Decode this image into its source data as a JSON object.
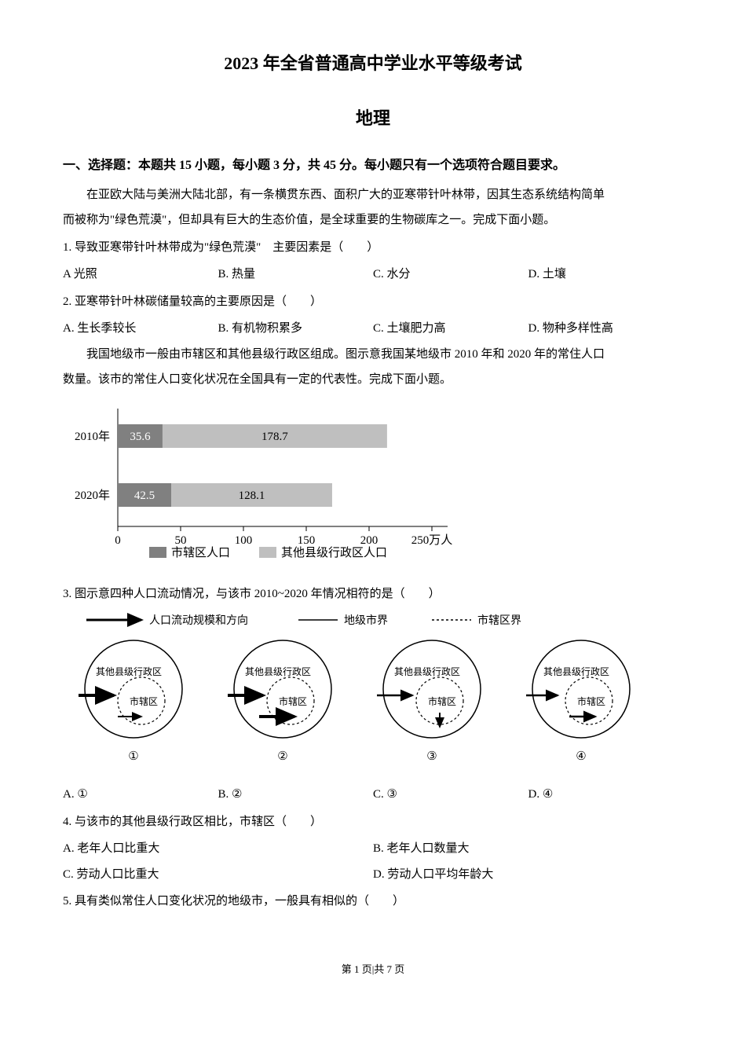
{
  "title_main": "2023 年全省普通高中学业水平等级考试",
  "title_sub": "地理",
  "section1": "一、选择题：本题共 15 小题，每小题 3 分，共 45 分。每小题只有一个选项符合题目要求。",
  "passage1a": "在亚欧大陆与美洲大陆北部，有一条横贯东西、面积广大的亚寒带针叶林带，因其生态系统结构简单",
  "passage1b": "而被称为\"绿色荒漠\"，但却具有巨大的生态价值，是全球重要的生物碳库之一。完成下面小题。",
  "q1": {
    "stem": "1. 导致亚寒带针叶林带成为\"绿色荒漠\"　主要因素是（　　）",
    "A": "A  光照",
    "B": "B. 热量",
    "C": "C. 水分",
    "D": "D. 土壤"
  },
  "q2": {
    "stem": "2. 亚寒带针叶林碳储量较高的主要原因是（　　）",
    "A": "A. 生长季较长",
    "B": "B. 有机物积累多",
    "C": "C. 土壤肥力高",
    "D": "D. 物种多样性高"
  },
  "passage2a": "我国地级市一般由市辖区和其他县级行政区组成。图示意我国某地级市 2010 年和 2020 年的常住人口",
  "passage2b": "数量。该市的常住人口变化状况在全国具有一定的代表性。完成下面小题。",
  "chart": {
    "type": "bar",
    "y_labels": [
      "2010年",
      "2020年"
    ],
    "series": [
      {
        "name": "市辖区人口",
        "values": [
          35.6,
          42.5
        ],
        "color": "#808080"
      },
      {
        "name": "其他县级行政区人口",
        "values": [
          178.7,
          128.1
        ],
        "color": "#bfbfbf"
      }
    ],
    "x_ticks": [
      0,
      50,
      100,
      150,
      200,
      250
    ],
    "x_unit": "万人",
    "axis_color": "#000000",
    "bg": "#ffffff",
    "font_size": 15,
    "legend": [
      "市辖区人口",
      "其他县级行政区人口"
    ],
    "legend_swatch": [
      "#808080",
      "#bfbfbf"
    ]
  },
  "q3": {
    "stem": "3. 图示意四种人口流动情况，与该市 2010~2020 年情况相符的是（　　）",
    "legend": {
      "arrow": "人口流动规模和方向",
      "solid": "地级市界",
      "dotted": "市辖区界"
    },
    "node_outer": "其他县级行政区",
    "node_inner": "市辖区",
    "circle_labels": [
      "①",
      "②",
      "③",
      "④"
    ],
    "A": "A. ①",
    "B": "B. ②",
    "C": "C. ③",
    "D": "D. ④",
    "colors": {
      "stroke": "#000000",
      "fill_none": "none"
    }
  },
  "q4": {
    "stem": "4. 与该市的其他县级行政区相比，市辖区（　　）",
    "A": "A. 老年人口比重大",
    "B": "B. 老年人口数量大",
    "C": "C. 劳动人口比重大",
    "D": "D. 劳动人口平均年龄大"
  },
  "q5": {
    "stem": "5. 具有类似常住人口变化状况的地级市，一般具有相似的（　　）"
  },
  "footer": "第 1 页|共 7 页"
}
